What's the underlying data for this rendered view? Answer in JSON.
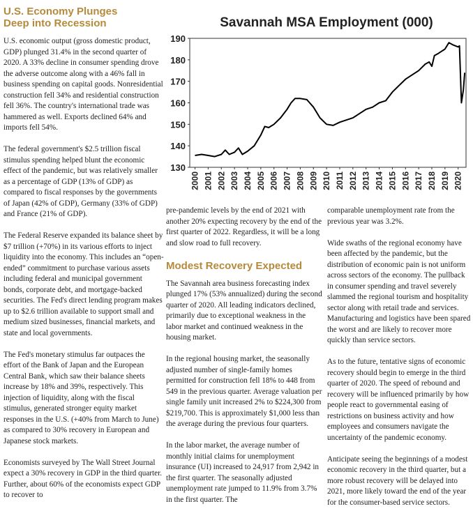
{
  "article": {
    "heading": "U.S. Economy Plunges Deep into Recession",
    "left_paragraphs": [
      "U.S. economic output (gross domestic product, GDP) plunged 31.4% in the second quarter of 2020. A 33% decline in consumer spending drove the adverse outcome along with a 46% fall in business spending on capital goods. Nonresidential construction fell 34% and residential construction fell 36%. The country's international trade was hammered as well. Exports declined 64% and imports fell 54%.",
      "The federal government's $2.5 trillion fiscal stimulus spending helped blunt the economic effect of the pandemic, but was relatively smaller as a percentage of GDP (13% of GDP) as compared to fiscal responses by the governments of Japan (42% of GDP), Germany (33% of GDP) and France (21% of GDP).",
      "The Federal Reserve expanded its balance sheet by $7 trillion (+70%) in its various efforts to inject liquidity into the economy. This includes an “open-ended” commitment to purchase various assets including federal and municipal government bonds, corporate debt, and mortgage-backed securities. The Fed's direct lending program makes up to $2.6 trillion available to support small and medium sized businesses, financial markets, and state and local governments.",
      "The Fed's monetary stimulus far outpaces the effort of the Bank of Japan and the European Central Bank, which saw their balance sheets increase by 18% and 39%, respectively. This injection of liquidity, along with the fiscal stimulus, generated stronger equity market responses in the U.S. (+40% from March to June) as compared to 30% recovery in European and Japanese stock markets.",
      "Economists surveyed by The Wall Street Journal expect a 30% recovery in GDP in the third quarter. Further, about 60% of the economists expect GDP to recover to"
    ],
    "middle_continuation": "pre-pandemic levels by the end of 2021 with another 20% expecting recovery by the end of the first quarter of 2022. Regardless, it will be a long and slow road to full recovery.",
    "middle_heading": "Modest Recovery Expected",
    "middle_paragraphs": [
      "The Savannah area business forecasting index plunged 17% (53% annualized) during the second quarter of 2020. All leading indicators declined, primarily due to exceptional weakness in the labor market and continued weakness in the housing market.",
      "In the regional housing market, the seasonally adjusted number of single-family homes permitted for construction fell 18% to 448 from 549 in the previous quarter. Average valuation per single family unit increased 2% to $224,300 from $219,700. This is approximately $1,000 less than the average during the previous four quarters.",
      "In the labor market, the average number of monthly initial claims for unemployment insurance (UI) increased to 24,917 from 2,942 in the first quarter. The seasonally adjusted unemployment rate jumped to 11.9% from 3.7% in the first quarter. The"
    ],
    "right_paragraphs": [
      "comparable unemployment rate from the previous year was 3.2%.",
      "Wide swaths of the regional economy have been affected by the pandemic, but the distribution of economic pain is not uniform across sectors of the economy. The pullback in consumer spending and travel severely slammed the regional tourism and hospitality sector along with retail trade and services. Manufacturing and logistics have been spared the worst and are likely to recover more quickly than service sectors.",
      "As to the future, tentative signs of economic recovery should begin to emerge in the third quarter of 2020. The speed of rebound and recovery will be influenced primarily by how people react to governmental easing of restrictions on business activity and how employees and consumers navigate the uncertainty of the pandemic economy.",
      "Anticipate seeing the beginnings of a modest economic recovery in the third quarter, but a more robust recovery will be delayed into 2021, more likely toward the end of the year for the consumer-based service sectors."
    ]
  },
  "chart_data": {
    "type": "line",
    "title": "Savannah MSA Employment (000)",
    "x": [
      2000.0,
      2000.5,
      2001.0,
      2001.5,
      2002.0,
      2002.3,
      2002.6,
      2003.0,
      2003.3,
      2003.6,
      2004.0,
      2004.5,
      2004.8,
      2005.0,
      2005.3,
      2005.6,
      2006.0,
      2006.5,
      2007.0,
      2007.3,
      2007.6,
      2008.0,
      2008.5,
      2009.0,
      2009.5,
      2010.0,
      2010.5,
      2011.0,
      2011.5,
      2012.0,
      2012.5,
      2013.0,
      2013.5,
      2014.0,
      2014.5,
      2015.0,
      2015.5,
      2016.0,
      2016.5,
      2017.0,
      2017.5,
      2017.8,
      2018.0,
      2018.2,
      2018.5,
      2019.0,
      2019.3,
      2019.6,
      2020.0,
      2020.1,
      2020.25,
      2020.4,
      2020.5
    ],
    "series": [
      {
        "color": "#000000",
        "values": [
          135.5,
          136,
          135.5,
          135,
          136,
          138,
          136,
          137,
          139,
          136,
          137.5,
          140,
          143,
          145,
          149,
          148.5,
          150,
          153,
          157,
          160,
          162,
          162,
          161.5,
          158,
          153,
          150,
          149.5,
          151,
          152,
          153,
          155,
          157,
          158,
          160,
          161,
          165,
          168,
          171,
          173,
          175,
          178,
          179,
          177,
          182,
          183,
          185,
          188,
          187,
          186,
          186.5,
          160,
          166,
          174
        ]
      }
    ],
    "xlim": [
      1999.6,
      2020.6
    ],
    "ylim": [
      130,
      190
    ],
    "xticks": [
      2000,
      2001,
      2002,
      2003,
      2004,
      2005,
      2006,
      2007,
      2008,
      2009,
      2010,
      2011,
      2012,
      2013,
      2014,
      2015,
      2016,
      2017,
      2018,
      2019,
      2020
    ],
    "yticks": [
      130,
      140,
      150,
      160,
      170,
      180,
      190
    ]
  }
}
